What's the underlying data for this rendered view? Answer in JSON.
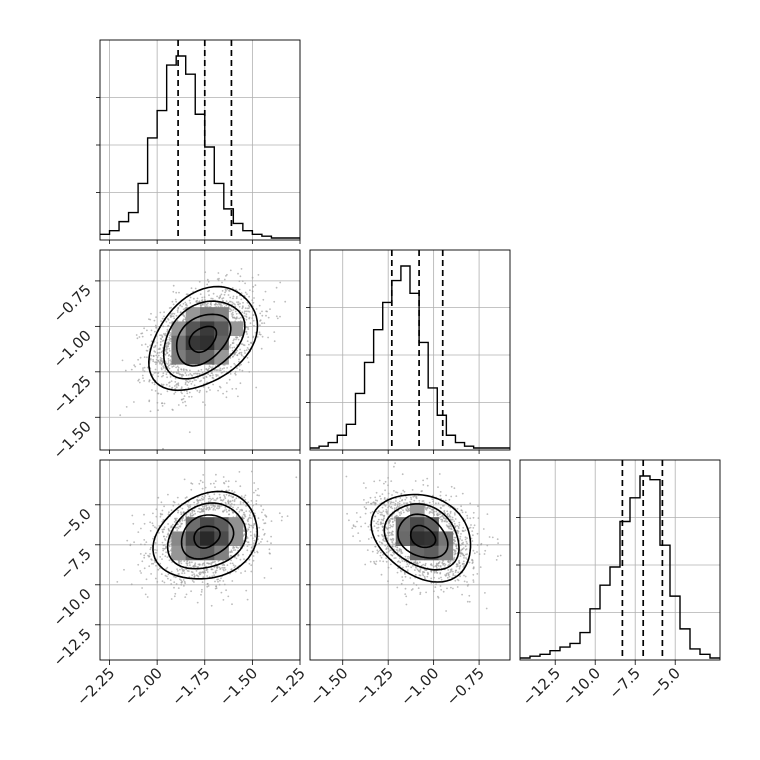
{
  "chart_data": {
    "type": "corner",
    "description_keys": "2D histograms / contours of a 3-parameter posterior sample",
    "parameters": [
      {
        "index": 0,
        "range": [
          -2.3,
          -1.25
        ],
        "ticks": [
          -2.25,
          -2.0,
          -1.75,
          -1.5,
          -1.25
        ],
        "tick_labels": [
          "−2.25",
          "−2.00",
          "−1.75",
          "−1.50",
          "−1.25"
        ],
        "median": -1.75,
        "quantiles_16_84": [
          -1.89,
          -1.61
        ],
        "histogram": {
          "bin_start": -2.3,
          "bin_width": 0.05,
          "heights": [
            2,
            4,
            9,
            14,
            30,
            55,
            70,
            95,
            100,
            90,
            68,
            50,
            30,
            16,
            8,
            4,
            2,
            1,
            0,
            0,
            0
          ]
        },
        "ellipse": {
          "cx": -1.76,
          "cy": 0,
          "sx": 0.14,
          "rho": 0.35
        }
      },
      {
        "index": 1,
        "range": [
          -1.68,
          -0.58
        ],
        "ticks": [
          -1.5,
          -1.25,
          -1.0,
          -0.75
        ],
        "tick_labels": [
          "−1.50",
          "−1.25",
          "−1.00",
          "−0.75"
        ],
        "median": -1.08,
        "quantiles_16_84": [
          -1.23,
          -0.95
        ],
        "histogram": {
          "bin_start": -1.68,
          "bin_width": 0.05,
          "heights": [
            0,
            1,
            3,
            7,
            13,
            30,
            47,
            65,
            80,
            92,
            100,
            85,
            58,
            33,
            18,
            7,
            3,
            1,
            0,
            0,
            0,
            0
          ]
        }
      },
      {
        "index": 2,
        "range": [
          -14.7,
          -2.2
        ],
        "ticks": [
          -12.5,
          -10.0,
          -7.5,
          -5.0
        ],
        "tick_labels": [
          "−12.5",
          "−10.0",
          "−7.5",
          "−5.0"
        ],
        "median": -7.0,
        "quantiles_16_84": [
          -8.3,
          -5.8
        ],
        "histogram": {
          "bin_start": -14.7,
          "bin_width": 0.625,
          "heights": [
            0,
            1,
            2,
            4,
            6,
            8,
            14,
            27,
            40,
            50,
            75,
            88,
            100,
            98,
            62,
            34,
            16,
            5,
            2,
            0
          ]
        }
      }
    ],
    "pairs": [
      {
        "x": 0,
        "y": 1,
        "rho": 0.35,
        "cx": -1.76,
        "cy": -1.07,
        "sx": 0.135,
        "sy": 0.135
      },
      {
        "x": 0,
        "y": 2,
        "rho": 0.2,
        "cx": -1.74,
        "cy": -7.0,
        "sx": 0.13,
        "sy": 1.3
      },
      {
        "x": 1,
        "y": 2,
        "rho": -0.25,
        "cx": -1.06,
        "cy": -7.0,
        "sx": 0.13,
        "sy": 1.3
      }
    ],
    "row_tick_labels": {
      "1": {
        "ticks": [
          -1.5,
          -1.25,
          -1.0,
          -0.75
        ],
        "labels": [
          "−1.50",
          "−1.25",
          "−1.00",
          "−0.75"
        ]
      },
      "2": {
        "ticks": [
          -12.5,
          -10.0,
          -7.5,
          -5.0
        ],
        "labels": [
          "−12.5",
          "−10.0",
          "−7.5",
          "−5.0"
        ]
      }
    },
    "contour_levels_sigma": [
      0.5,
      1.0,
      1.5,
      2.0
    ],
    "grid": true,
    "colors": {
      "points": "#9a9a9a",
      "line": "#000000",
      "grid": "#b0b0b0"
    }
  }
}
